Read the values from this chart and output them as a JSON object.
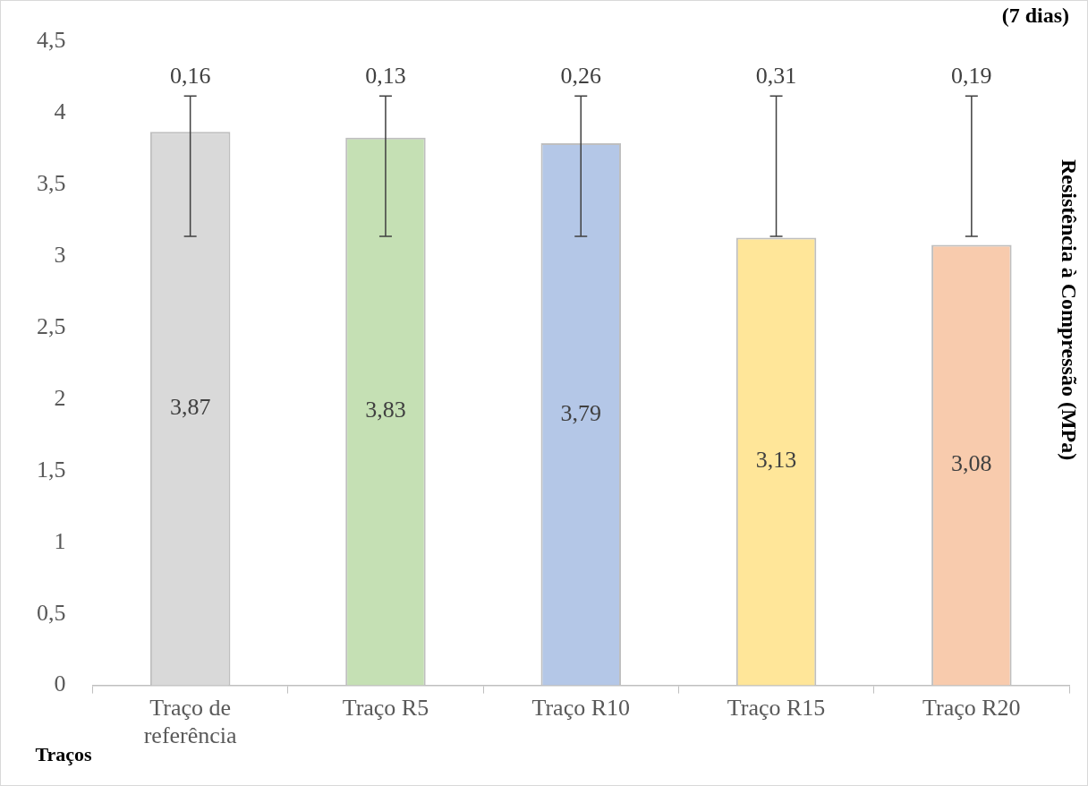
{
  "chart_data": {
    "type": "bar",
    "xlabel": "Traços",
    "ylabel": "Resistência à Compressão (MPa)",
    "categories": [
      "Traço de referência",
      "Traço R5",
      "Traço R10",
      "Traço R15",
      "Traço R20"
    ],
    "values": [
      3.87,
      3.83,
      3.79,
      3.13,
      3.08
    ],
    "colors": [
      "#d9d9d9",
      "#c5e0b4",
      "#b4c7e7",
      "#ffe699",
      "#f8cbad"
    ],
    "value_labels": [
      "3,87",
      "3,83",
      "3,79",
      "3,13",
      "3,08"
    ],
    "errors": [
      [
        3.14,
        4.12
      ],
      [
        3.14,
        4.12
      ],
      [
        3.14,
        4.12
      ],
      [
        3.14,
        4.12
      ],
      [
        3.14,
        4.12
      ]
    ],
    "ylim": [
      0,
      4.5
    ],
    "yticks": [
      {
        "value": 0,
        "label": "0"
      },
      {
        "value": 0.5,
        "label": "0,5"
      },
      {
        "value": 1,
        "label": "1"
      },
      {
        "value": 1.5,
        "label": "1,5"
      },
      {
        "value": 2,
        "label": "2"
      },
      {
        "value": 2.5,
        "label": "2,5"
      },
      {
        "value": 3,
        "label": "3"
      },
      {
        "value": 3.5,
        "label": "3,5"
      },
      {
        "value": 4,
        "label": "4"
      },
      {
        "value": 4.5,
        "label": "4,5"
      }
    ],
    "annotations": [
      "(7 dias)",
      "0,16",
      "0,13",
      "0,26",
      "0,31",
      "0,19"
    ],
    "grid": false,
    "legend": false
  }
}
